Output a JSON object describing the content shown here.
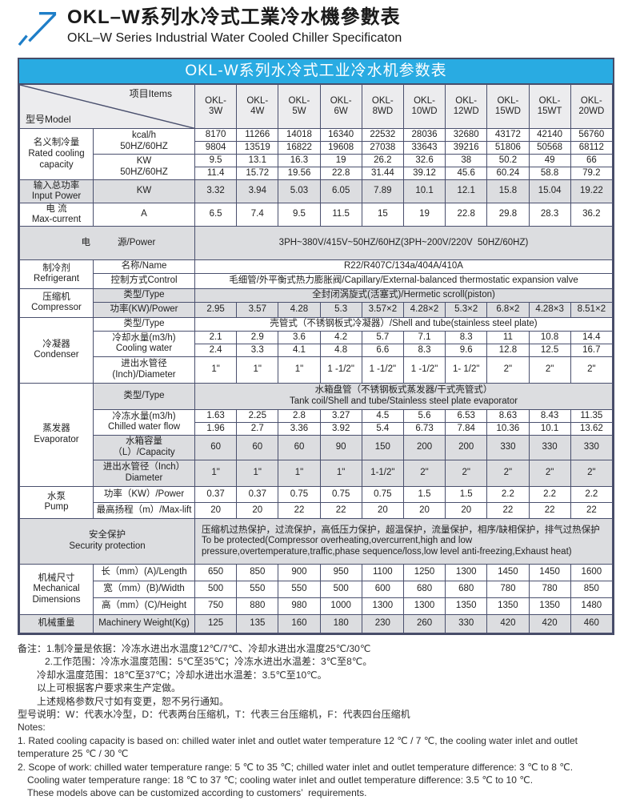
{
  "page": {
    "title_zh": "OKL–W系列水冷式工業冷水機參數表",
    "title_en": "OKL–W Series Industrial Water Cooled Chiller Specificaton"
  },
  "banner": "OKL-W系列水冷式工业冷水机参数表",
  "corner": {
    "model": "型号Model",
    "items": "项目Items"
  },
  "models": [
    "OKL-\n3W",
    "OKL-\n4W",
    "OKL-\n5W",
    "OKL-\n6W",
    "OKL-\n8WD",
    "OKL-\n10WD",
    "OKL-\n12WD",
    "OKL-\n15WD",
    "OKL-\n15WT",
    "OKL-\n20WD"
  ],
  "labels": {
    "rated_cat": "名义制冷量\nRated cooling\ncapacity",
    "kcal_item": "kcal/h\n50HZ/60HZ",
    "kw_item": "KW\n50HZ/60HZ",
    "input_cat": "输入总功率\nInput Power",
    "input_item": "KW",
    "current_cat": "电 流\nMax-current",
    "current_item": "A",
    "power_zh": "电",
    "power_en": "源/Power",
    "power_value": "3PH~380V/415V~50HZ/60HZ(3PH~200V/220V  50HZ/60HZ)",
    "refr_cat": "制冷剂\nRefrigerant",
    "refr_name_item": "名称/Name",
    "refr_name_value": "R22/R407C/134a/404A/410A",
    "refr_ctrl_item": "控制方式Control",
    "refr_ctrl_value": "毛细管/外平衡式热力膨胀阀/Capillary/External-balanced thermostatic expansion valve",
    "type_item": "类型/Type",
    "comp_cat": "压缩机\nCompressor",
    "comp_type_value": "全封闭涡旋式(活塞式)/Hermetic scroll(piston)",
    "comp_power_item": "功率(KW)/Power",
    "cond_cat": "冷凝器\nCondenser",
    "cond_type_value": "壳管式（不锈钢板式冷凝器）/Shell and tube(stainless steel plate)",
    "cond_water_item": "冷却水量(m3/h)\nCooling water",
    "cond_dia_item": "进出水管径\n(Inch)/Diameter",
    "evap_cat": "蒸发器\nEvaporator",
    "evap_type_value": "水箱盘管（不锈钢板式蒸发器/干式壳管式）\nTank coil/Shell and tube/Stainless steel plate evaporator",
    "evap_flow_item": "冷冻水量(m3/h)\nChilled water flow",
    "evap_tank_item": "水箱容量（L）/Capacity",
    "evap_dia_item": "进出水管径（Inch）\nDiameter",
    "pump_cat": "水泵\nPump",
    "pump_power_item": "功率（KW）/Power",
    "pump_lift_item": "最高扬程（m）/Max-lift",
    "security_label": "安全保护\nSecurity protection",
    "security_value": "压缩机过热保护，过流保护，高低压力保护，超温保护，流量保护，相序/缺相保护，排气过热保护\nTo be protected(Compressor overheating,overcurrent,high and low\npressure,overtemperature,traffic,phase sequence/loss,low level anti-freezing,Exhaust heat)",
    "mech_cat": "机械尺寸\nMechanical\nDimensions",
    "len_item": "长（mm）(A)/Length",
    "wid_item": "宽（mm）(B)/Width",
    "hgt_item": "高（mm）(C)/Height",
    "weight_cat": "机械重量",
    "weight_item": "Machinery Weight(Kg)"
  },
  "values": {
    "kcal50": [
      "8170",
      "11266",
      "14018",
      "16340",
      "22532",
      "28036",
      "32680",
      "43172",
      "42140",
      "56760"
    ],
    "kcal60": [
      "9804",
      "13519",
      "16822",
      "19608",
      "27038",
      "33643",
      "39216",
      "51806",
      "50568",
      "68112"
    ],
    "kw50": [
      "9.5",
      "13.1",
      "16.3",
      "19",
      "26.2",
      "32.6",
      "38",
      "50.2",
      "49",
      "66"
    ],
    "kw60": [
      "11.4",
      "15.72",
      "19.56",
      "22.8",
      "31.44",
      "39.12",
      "45.6",
      "60.24",
      "58.8",
      "79.2"
    ],
    "input_power": [
      "3.32",
      "3.94",
      "5.03",
      "6.05",
      "7.89",
      "10.1",
      "12.1",
      "15.8",
      "15.04",
      "19.22"
    ],
    "max_current": [
      "6.5",
      "7.4",
      "9.5",
      "11.5",
      "15",
      "19",
      "22.8",
      "29.8",
      "28.3",
      "36.2"
    ],
    "comp_power": [
      "2.95",
      "3.57",
      "4.28",
      "5.3",
      "3.57×2",
      "4.28×2",
      "5.3×2",
      "6.8×2",
      "4.28×3",
      "8.51×2"
    ],
    "cond_water50": [
      "2.1",
      "2.9",
      "3.6",
      "4.2",
      "5.7",
      "7.1",
      "8.3",
      "11",
      "10.8",
      "14.4"
    ],
    "cond_water60": [
      "2.4",
      "3.3",
      "4.1",
      "4.8",
      "6.6",
      "8.3",
      "9.6",
      "12.8",
      "12.5",
      "16.7"
    ],
    "cond_dia": [
      "1\"",
      "1\"",
      "1\"",
      "1 -1/2\"",
      "1 -1/2\"",
      "1 -1/2\"",
      "1- 1/2\"",
      "2\"",
      "2\"",
      "2\""
    ],
    "flow50": [
      "1.63",
      "2.25",
      "2.8",
      "3.27",
      "4.5",
      "5.6",
      "6.53",
      "8.63",
      "8.43",
      "11.35"
    ],
    "flow60": [
      "1.96",
      "2.7",
      "3.36",
      "3.92",
      "5.4",
      "6.73",
      "7.84",
      "10.36",
      "10.1",
      "13.62"
    ],
    "tank": [
      "60",
      "60",
      "60",
      "90",
      "150",
      "200",
      "200",
      "330",
      "330",
      "330"
    ],
    "evap_dia": [
      "1\"",
      "1\"",
      "1\"",
      "1\"",
      "1-1/2\"",
      "2\"",
      "2\"",
      "2\"",
      "2\"",
      "2\""
    ],
    "pump_power": [
      "0.37",
      "0.37",
      "0.75",
      "0.75",
      "0.75",
      "1.5",
      "1.5",
      "2.2",
      "2.2",
      "2.2"
    ],
    "pump_lift": [
      "20",
      "20",
      "22",
      "22",
      "20",
      "20",
      "20",
      "22",
      "22",
      "22"
    ],
    "length": [
      "650",
      "850",
      "900",
      "950",
      "1100",
      "1250",
      "1300",
      "1450",
      "1450",
      "1600"
    ],
    "width": [
      "500",
      "550",
      "550",
      "500",
      "600",
      "680",
      "680",
      "780",
      "780",
      "850"
    ],
    "height": [
      "750",
      "880",
      "980",
      "1000",
      "1300",
      "1300",
      "1350",
      "1350",
      "1350",
      "1480"
    ],
    "weight": [
      "125",
      "135",
      "160",
      "180",
      "230",
      "260",
      "330",
      "420",
      "420",
      "460"
    ]
  },
  "notes": {
    "zh": [
      "备注：1.制冷量是依据：冷冻水进出水温度12℃/7℃、冷却水进出水温度25℃/30℃",
      "2.工作范围：冷冻水温度范围：5℃至35℃；冷冻水进出水温差：3℃至8℃。",
      "冷却水温度范围：18℃至37℃；冷却水进出水温差：3.5℃至10℃。",
      "以上可根据客户要求来生产定做。",
      "上述规格参数尺寸如有变更，恕不另行通知。",
      "型号说明：W：代表水冷型，D：代表两台压缩机，T：代表三台压缩机，F：代表四台压缩机"
    ],
    "en": [
      "Notes:",
      "1. Rated cooling capacity is based on: chilled water inlet and outlet water temperature 12 ℃ / 7 ℃, the cooling water inlet and outlet",
      "temperature 25 ℃ / 30 ℃",
      "2. Scope of work: chilled water temperature range: 5 ℃ to 35 ℃; chilled water inlet and outlet temperature difference: 3 ℃ to 8 ℃.",
      "Cooling water temperature range: 18 ℃ to 37 ℃; cooling water inlet and outlet temperature difference: 3.5 ℃ to 10 ℃.",
      "These models above can be customized according to customers’  requirements."
    ]
  }
}
